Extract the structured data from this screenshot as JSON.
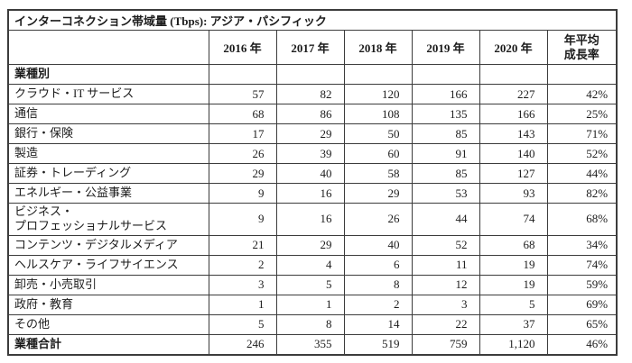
{
  "chart_data": {
    "type": "table",
    "title": "インターコネクション帯域量 (Tbps): アジア・パシフィック",
    "columns": [
      "2016 年",
      "2017 年",
      "2018 年",
      "2019 年",
      "2020 年",
      "年平均\n成長率"
    ],
    "section_label": "業種別",
    "rows": [
      {
        "label": "クラウド・IT サービス",
        "values": [
          "57",
          "82",
          "120",
          "166",
          "227",
          "42%"
        ]
      },
      {
        "label": "通信",
        "values": [
          "68",
          "86",
          "108",
          "135",
          "166",
          "25%"
        ]
      },
      {
        "label": "銀行・保険",
        "values": [
          "17",
          "29",
          "50",
          "85",
          "143",
          "71%"
        ]
      },
      {
        "label": "製造",
        "values": [
          "26",
          "39",
          "60",
          "91",
          "140",
          "52%"
        ]
      },
      {
        "label": "証券・トレーディング",
        "values": [
          "29",
          "40",
          "58",
          "85",
          "127",
          "44%"
        ]
      },
      {
        "label": "エネルギー・公益事業",
        "values": [
          "9",
          "16",
          "29",
          "53",
          "93",
          "82%"
        ]
      },
      {
        "label": "ビジネス・\nプロフェッショナルサービス",
        "values": [
          "9",
          "16",
          "26",
          "44",
          "74",
          "68%"
        ]
      },
      {
        "label": "コンテンツ・デジタルメディア",
        "values": [
          "21",
          "29",
          "40",
          "52",
          "68",
          "34%"
        ]
      },
      {
        "label": "ヘルスケア・ライフサイエンス",
        "values": [
          "2",
          "4",
          "6",
          "11",
          "19",
          "74%"
        ]
      },
      {
        "label": "卸売・小売取引",
        "values": [
          "3",
          "5",
          "8",
          "12",
          "19",
          "59%"
        ]
      },
      {
        "label": "政府・教育",
        "values": [
          "1",
          "1",
          "2",
          "3",
          "5",
          "69%"
        ]
      },
      {
        "label": "その他",
        "values": [
          "5",
          "8",
          "14",
          "22",
          "37",
          "65%"
        ]
      }
    ],
    "total_row": {
      "label": "業種合計",
      "values": [
        "246",
        "355",
        "519",
        "759",
        "1,120",
        "46%"
      ]
    },
    "colors": {
      "border": "#3c3c3c",
      "text": "#1c1c1c",
      "background": "#ffffff"
    }
  }
}
